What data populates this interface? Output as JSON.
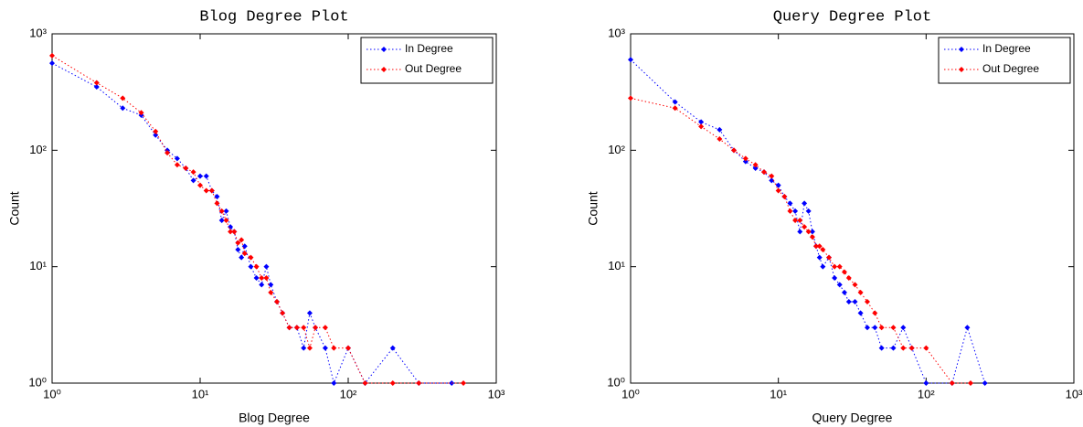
{
  "chart_data": [
    {
      "type": "line",
      "title": "Blog Degree Plot",
      "xlabel": "Blog Degree",
      "ylabel": "Count",
      "xscale": "log",
      "yscale": "log",
      "xlim": [
        1,
        1000
      ],
      "ylim": [
        1,
        1000
      ],
      "xticks": [
        {
          "value": 1,
          "label": "10⁰"
        },
        {
          "value": 10,
          "label": "10¹"
        },
        {
          "value": 100,
          "label": "10²"
        },
        {
          "value": 1000,
          "label": "10³"
        }
      ],
      "yticks": [
        {
          "value": 1,
          "label": "10⁰"
        },
        {
          "value": 10,
          "label": "10¹"
        },
        {
          "value": 100,
          "label": "10²"
        },
        {
          "value": 1000,
          "label": "10³"
        }
      ],
      "legend": "northeast",
      "series": [
        {
          "name": "In Degree",
          "color": "#0000ff",
          "x": [
            1,
            2,
            3,
            4,
            5,
            6,
            7,
            8,
            9,
            10,
            11,
            12,
            13,
            14,
            15,
            16,
            17,
            18,
            19,
            20,
            22,
            24,
            26,
            28,
            30,
            33,
            36,
            40,
            45,
            50,
            55,
            60,
            70,
            80,
            100,
            130,
            200,
            300,
            500
          ],
          "values": [
            560,
            350,
            230,
            200,
            135,
            100,
            85,
            70,
            55,
            60,
            60,
            45,
            40,
            25,
            30,
            22,
            20,
            14,
            12,
            15,
            10,
            8,
            7,
            10,
            7,
            5,
            4,
            3,
            3,
            2,
            4,
            3,
            2,
            1,
            2,
            1,
            2,
            1,
            1
          ]
        },
        {
          "name": "Out Degree",
          "color": "#ff0000",
          "x": [
            1,
            2,
            3,
            4,
            5,
            6,
            7,
            8,
            9,
            10,
            11,
            12,
            13,
            14,
            15,
            16,
            17,
            18,
            19,
            20,
            22,
            24,
            26,
            28,
            30,
            33,
            36,
            40,
            45,
            50,
            55,
            60,
            70,
            80,
            100,
            130,
            200,
            300,
            600
          ],
          "values": [
            650,
            380,
            280,
            210,
            145,
            95,
            75,
            70,
            65,
            50,
            45,
            45,
            35,
            30,
            25,
            20,
            20,
            16,
            17,
            13,
            12,
            10,
            8,
            8,
            6,
            5,
            4,
            3,
            3,
            3,
            2,
            3,
            3,
            2,
            2,
            1,
            1,
            1,
            1
          ]
        }
      ]
    },
    {
      "type": "line",
      "title": "Query Degree Plot",
      "xlabel": "Query Degree",
      "ylabel": "Count",
      "xscale": "log",
      "yscale": "log",
      "xlim": [
        1,
        1000
      ],
      "ylim": [
        1,
        1000
      ],
      "xticks": [
        {
          "value": 1,
          "label": "10⁰"
        },
        {
          "value": 10,
          "label": "10¹"
        },
        {
          "value": 100,
          "label": "10²"
        },
        {
          "value": 1000,
          "label": "10³"
        }
      ],
      "yticks": [
        {
          "value": 1,
          "label": "10⁰"
        },
        {
          "value": 10,
          "label": "10¹"
        },
        {
          "value": 100,
          "label": "10²"
        },
        {
          "value": 1000,
          "label": "10³"
        }
      ],
      "legend": "northeast",
      "series": [
        {
          "name": "In Degree",
          "color": "#0000ff",
          "x": [
            1,
            2,
            3,
            4,
            5,
            6,
            7,
            8,
            9,
            10,
            11,
            12,
            13,
            14,
            15,
            16,
            17,
            18,
            19,
            20,
            22,
            24,
            26,
            28,
            30,
            33,
            36,
            40,
            45,
            50,
            60,
            70,
            80,
            100,
            150,
            190,
            250
          ],
          "values": [
            600,
            260,
            175,
            150,
            100,
            80,
            70,
            65,
            55,
            50,
            40,
            35,
            30,
            20,
            35,
            30,
            20,
            15,
            12,
            10,
            12,
            8,
            7,
            6,
            5,
            5,
            4,
            3,
            3,
            2,
            2,
            3,
            2,
            1,
            1,
            3,
            1
          ]
        },
        {
          "name": "Out Degree",
          "color": "#ff0000",
          "x": [
            1,
            2,
            3,
            4,
            5,
            6,
            7,
            8,
            9,
            10,
            11,
            12,
            13,
            14,
            15,
            16,
            17,
            18,
            19,
            20,
            22,
            24,
            26,
            28,
            30,
            33,
            36,
            40,
            45,
            50,
            60,
            70,
            80,
            100,
            150,
            200
          ],
          "values": [
            280,
            230,
            160,
            125,
            100,
            85,
            75,
            65,
            60,
            45,
            40,
            30,
            25,
            25,
            22,
            20,
            18,
            15,
            15,
            14,
            12,
            10,
            10,
            9,
            8,
            7,
            6,
            5,
            4,
            3,
            3,
            2,
            2,
            2,
            1,
            1
          ]
        }
      ]
    }
  ]
}
